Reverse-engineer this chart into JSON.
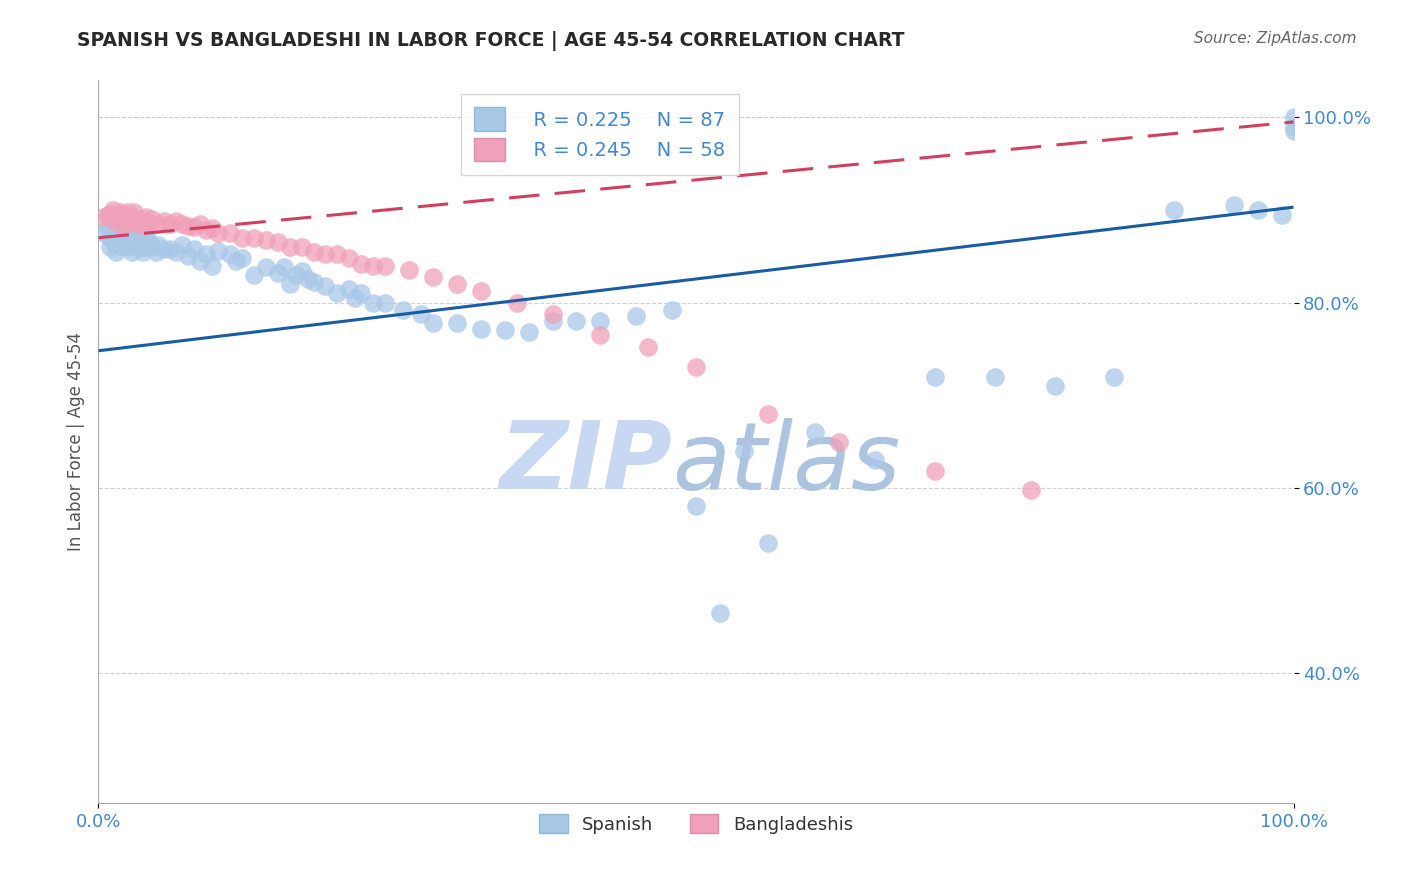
{
  "title": "SPANISH VS BANGLADESHI IN LABOR FORCE | AGE 45-54 CORRELATION CHART",
  "source_text": "Source: ZipAtlas.com",
  "ylabel": "In Labor Force | Age 45-54",
  "xlim": [
    0.0,
    1.0
  ],
  "ylim": [
    0.26,
    1.04
  ],
  "ytick_positions": [
    0.4,
    0.6,
    0.8,
    1.0
  ],
  "ytick_labels": [
    "40.0%",
    "60.0%",
    "80.0%",
    "100.0%"
  ],
  "legend_r_spanish": "R = 0.225",
  "legend_n_spanish": "N = 87",
  "legend_r_bangladeshi": "R = 0.245",
  "legend_n_bangladeshi": "N = 58",
  "blue_fill": "#a8c8e8",
  "pink_fill": "#f0a0b8",
  "line_blue": "#1a5ca0",
  "line_pink": "#d04060",
  "title_color": "#282828",
  "axis_label_color": "#4488cc",
  "watermark_zip_color": "#c8d8f0",
  "watermark_atlas_color": "#b0c8e8",
  "grid_color": "#cccccc",
  "spanish_b0": 0.748,
  "spanish_b1": 0.155,
  "bangladeshi_b0": 0.87,
  "bangladeshi_b1": 0.125,
  "spanish_x": [
    0.005,
    0.008,
    0.01,
    0.01,
    0.012,
    0.013,
    0.015,
    0.015,
    0.018,
    0.02,
    0.02,
    0.02,
    0.022,
    0.025,
    0.025,
    0.027,
    0.028,
    0.03,
    0.03,
    0.032,
    0.033,
    0.035,
    0.037,
    0.04,
    0.04,
    0.042,
    0.045,
    0.048,
    0.05,
    0.055,
    0.06,
    0.065,
    0.07,
    0.075,
    0.08,
    0.085,
    0.09,
    0.095,
    0.1,
    0.11,
    0.115,
    0.12,
    0.13,
    0.14,
    0.15,
    0.155,
    0.16,
    0.165,
    0.17,
    0.175,
    0.18,
    0.19,
    0.2,
    0.21,
    0.215,
    0.22,
    0.23,
    0.24,
    0.255,
    0.27,
    0.28,
    0.3,
    0.32,
    0.34,
    0.36,
    0.38,
    0.4,
    0.42,
    0.45,
    0.48,
    0.5,
    0.52,
    0.54,
    0.56,
    0.6,
    0.65,
    0.7,
    0.75,
    0.8,
    0.85,
    0.9,
    0.95,
    0.97,
    0.99,
    1.0,
    1.0,
    1.0
  ],
  "spanish_y": [
    0.875,
    0.88,
    0.87,
    0.86,
    0.875,
    0.865,
    0.87,
    0.855,
    0.87,
    0.88,
    0.87,
    0.86,
    0.865,
    0.875,
    0.86,
    0.87,
    0.855,
    0.875,
    0.865,
    0.87,
    0.86,
    0.86,
    0.855,
    0.875,
    0.86,
    0.865,
    0.86,
    0.855,
    0.862,
    0.858,
    0.858,
    0.855,
    0.862,
    0.85,
    0.858,
    0.845,
    0.852,
    0.84,
    0.856,
    0.852,
    0.845,
    0.848,
    0.83,
    0.838,
    0.832,
    0.838,
    0.82,
    0.83,
    0.834,
    0.826,
    0.822,
    0.818,
    0.81,
    0.815,
    0.805,
    0.81,
    0.8,
    0.8,
    0.792,
    0.788,
    0.778,
    0.778,
    0.772,
    0.77,
    0.768,
    0.78,
    0.78,
    0.78,
    0.785,
    0.792,
    0.58,
    0.465,
    0.64,
    0.54,
    0.66,
    0.63,
    0.72,
    0.72,
    0.71,
    0.72,
    0.9,
    0.905,
    0.9,
    0.895,
    0.985,
    0.99,
    1.0
  ],
  "bangladeshi_x": [
    0.005,
    0.008,
    0.01,
    0.012,
    0.013,
    0.015,
    0.018,
    0.02,
    0.02,
    0.022,
    0.025,
    0.025,
    0.028,
    0.03,
    0.032,
    0.035,
    0.038,
    0.04,
    0.042,
    0.045,
    0.05,
    0.055,
    0.06,
    0.065,
    0.07,
    0.075,
    0.08,
    0.085,
    0.09,
    0.095,
    0.1,
    0.11,
    0.12,
    0.13,
    0.14,
    0.15,
    0.16,
    0.17,
    0.18,
    0.19,
    0.2,
    0.21,
    0.22,
    0.23,
    0.24,
    0.26,
    0.28,
    0.3,
    0.32,
    0.35,
    0.38,
    0.42,
    0.46,
    0.5,
    0.56,
    0.62,
    0.7,
    0.78
  ],
  "bangladeshi_y": [
    0.892,
    0.895,
    0.896,
    0.9,
    0.888,
    0.893,
    0.898,
    0.895,
    0.884,
    0.892,
    0.898,
    0.886,
    0.892,
    0.898,
    0.885,
    0.89,
    0.884,
    0.892,
    0.886,
    0.89,
    0.885,
    0.888,
    0.885,
    0.888,
    0.885,
    0.883,
    0.882,
    0.885,
    0.878,
    0.88,
    0.875,
    0.875,
    0.87,
    0.87,
    0.868,
    0.865,
    0.86,
    0.86,
    0.855,
    0.852,
    0.852,
    0.848,
    0.842,
    0.84,
    0.84,
    0.835,
    0.828,
    0.82,
    0.812,
    0.8,
    0.788,
    0.765,
    0.752,
    0.73,
    0.68,
    0.65,
    0.618,
    0.598
  ]
}
